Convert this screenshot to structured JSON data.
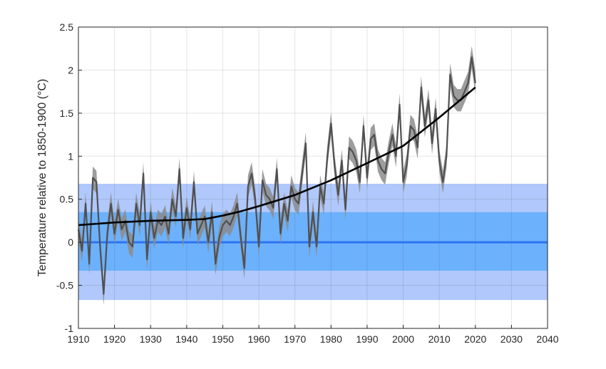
{
  "chart_data": {
    "type": "line",
    "ylabel": "Temperature relative to 1850-1900 (°C)",
    "xlim": [
      1910,
      2040
    ],
    "ylim": [
      -1,
      2.5
    ],
    "grid": true,
    "x_ticks": [
      1910,
      1920,
      1930,
      1940,
      1950,
      1960,
      1970,
      1980,
      1990,
      2000,
      2010,
      2020,
      2030,
      2040
    ],
    "y_ticks": [
      -1,
      -0.5,
      0,
      0.5,
      1,
      1.5,
      2,
      2.5
    ],
    "colors": {
      "outer_band": "#b0c8fb",
      "inner_band": "#6cb1fc",
      "zero_line": "#2d74f0",
      "annual_line": "#505050",
      "uncertainty": "#8c8c8c",
      "trend": "#000000"
    },
    "bands": [
      {
        "y_min": -0.67,
        "y_max": 0.68
      },
      {
        "y_min": -0.33,
        "y_max": 0.35
      }
    ],
    "zero_line": 0,
    "uncertainty_halfwidth": 0.13,
    "annual_series": {
      "x": [
        1910,
        1911,
        1912,
        1913,
        1914,
        1915,
        1916,
        1917,
        1918,
        1919,
        1920,
        1921,
        1922,
        1923,
        1924,
        1925,
        1926,
        1927,
        1928,
        1929,
        1930,
        1931,
        1932,
        1933,
        1934,
        1935,
        1936,
        1937,
        1938,
        1939,
        1940,
        1941,
        1942,
        1943,
        1944,
        1945,
        1946,
        1947,
        1948,
        1949,
        1950,
        1951,
        1952,
        1953,
        1954,
        1955,
        1956,
        1957,
        1958,
        1959,
        1960,
        1961,
        1962,
        1963,
        1964,
        1965,
        1966,
        1967,
        1968,
        1969,
        1970,
        1971,
        1972,
        1973,
        1974,
        1975,
        1976,
        1977,
        1978,
        1979,
        1980,
        1981,
        1982,
        1983,
        1984,
        1985,
        1986,
        1987,
        1988,
        1989,
        1990,
        1991,
        1992,
        1993,
        1994,
        1995,
        1996,
        1997,
        1998,
        1999,
        2000,
        2001,
        2002,
        2003,
        2004,
        2005,
        2006,
        2007,
        2008,
        2009,
        2010,
        2011,
        2012,
        2013,
        2014,
        2015,
        2016,
        2017,
        2018,
        2019,
        2020
      ],
      "y": [
        0.15,
        -0.1,
        0.45,
        -0.25,
        0.75,
        0.7,
        -0.05,
        -0.6,
        0.1,
        0.45,
        0.1,
        0.38,
        0.15,
        0.25,
        0.0,
        -0.05,
        0.45,
        0.2,
        0.8,
        -0.2,
        0.35,
        0.05,
        0.25,
        0.2,
        0.3,
        0.1,
        0.5,
        0.3,
        0.85,
        0.05,
        0.4,
        0.15,
        0.7,
        0.1,
        0.2,
        0.3,
        0.0,
        0.35,
        -0.25,
        0.05,
        0.2,
        0.25,
        0.2,
        0.3,
        0.45,
        0.05,
        -0.3,
        0.65,
        0.8,
        0.5,
        -0.05,
        0.72,
        0.55,
        0.5,
        0.4,
        0.85,
        0.1,
        0.45,
        0.25,
        0.65,
        0.5,
        0.45,
        0.8,
        1.15,
        -0.05,
        0.35,
        -0.05,
        0.65,
        0.45,
        1.0,
        1.38,
        0.88,
        0.55,
        0.95,
        0.38,
        1.1,
        1.05,
        0.95,
        0.7,
        1.35,
        0.75,
        1.2,
        1.25,
        0.95,
        0.85,
        0.8,
        1.05,
        1.25,
        1.0,
        1.6,
        0.7,
        0.9,
        1.35,
        1.3,
        1.1,
        1.8,
        1.35,
        1.65,
        1.15,
        1.55,
        0.95,
        0.7,
        1.0,
        1.95,
        1.7,
        1.65,
        1.65,
        1.75,
        1.85,
        2.15,
        1.85
      ]
    },
    "trend_series": {
      "x": [
        1910,
        1920,
        1930,
        1940,
        1945,
        1950,
        1955,
        1960,
        1970,
        1980,
        1990,
        2000,
        2010,
        2020
      ],
      "y": [
        0.2,
        0.23,
        0.25,
        0.26,
        0.27,
        0.31,
        0.36,
        0.42,
        0.55,
        0.72,
        0.92,
        1.12,
        1.45,
        1.8
      ]
    }
  }
}
